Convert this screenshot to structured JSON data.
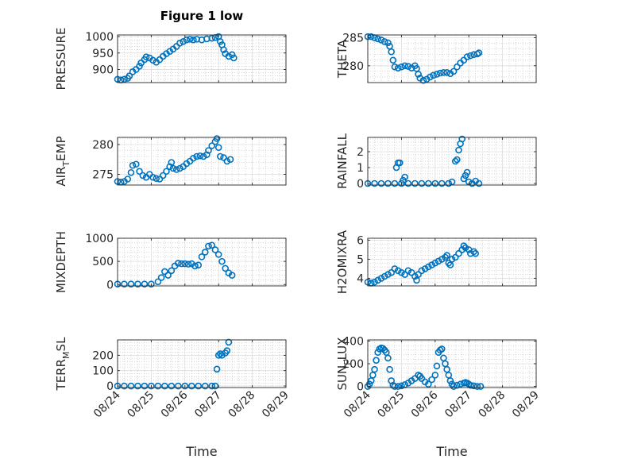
{
  "figure": {
    "title": "Figure 1 low"
  },
  "colors": {
    "marker": "#0072BD",
    "axis": "#262626",
    "grid": "#b0b0b0"
  },
  "x_axis": {
    "label": "Time",
    "ticks": [
      0,
      1,
      2,
      3,
      4,
      5
    ],
    "tick_labels": [
      "08/24",
      "08/25",
      "08/26",
      "08/27",
      "08/28",
      "08/29"
    ]
  },
  "chart_data": [
    {
      "type": "scatter",
      "xlabel": "",
      "ylabel": "PRESSURE",
      "ylim": [
        860,
        1005
      ],
      "xlim": [
        0,
        5
      ],
      "yticks": [
        900,
        950,
        1000
      ],
      "ytick_labels": [
        "900",
        "950",
        "1000"
      ],
      "grid": true,
      "minor_grid": true,
      "points": [
        [
          0,
          870
        ],
        [
          0.1,
          868
        ],
        [
          0.2,
          870
        ],
        [
          0.3,
          873
        ],
        [
          0.35,
          880
        ],
        [
          0.45,
          893
        ],
        [
          0.55,
          900
        ],
        [
          0.65,
          910
        ],
        [
          0.7,
          920
        ],
        [
          0.8,
          930
        ],
        [
          0.85,
          938
        ],
        [
          0.95,
          935
        ],
        [
          1.05,
          928
        ],
        [
          1.15,
          922
        ],
        [
          1.25,
          930
        ],
        [
          1.35,
          940
        ],
        [
          1.45,
          948
        ],
        [
          1.55,
          955
        ],
        [
          1.65,
          962
        ],
        [
          1.75,
          970
        ],
        [
          1.85,
          980
        ],
        [
          1.95,
          985
        ],
        [
          2.05,
          990
        ],
        [
          2.15,
          992
        ],
        [
          2.25,
          990
        ],
        [
          2.35,
          992
        ],
        [
          2.5,
          990
        ],
        [
          2.65,
          993
        ],
        [
          2.8,
          995
        ],
        [
          2.9,
          997
        ],
        [
          3.0,
          1000
        ],
        [
          3.05,
          985
        ],
        [
          3.1,
          975
        ],
        [
          3.15,
          960
        ],
        [
          3.2,
          948
        ],
        [
          3.3,
          940
        ],
        [
          3.4,
          945
        ],
        [
          3.45,
          935
        ]
      ]
    },
    {
      "type": "scatter",
      "xlabel": "",
      "ylabel": "THETA",
      "ylim": [
        277,
        285.5
      ],
      "xlim": [
        0,
        5
      ],
      "yticks": [
        280,
        285
      ],
      "ytick_labels": [
        "280",
        "285"
      ],
      "grid": true,
      "minor_grid": true,
      "points": [
        [
          0,
          285.2
        ],
        [
          0.1,
          285.2
        ],
        [
          0.2,
          285
        ],
        [
          0.3,
          284.8
        ],
        [
          0.4,
          284.6
        ],
        [
          0.5,
          284.3
        ],
        [
          0.6,
          284.1
        ],
        [
          0.65,
          283.5
        ],
        [
          0.7,
          282.5
        ],
        [
          0.75,
          281
        ],
        [
          0.8,
          279.8
        ],
        [
          0.9,
          279.6
        ],
        [
          1.0,
          279.8
        ],
        [
          1.1,
          280
        ],
        [
          1.2,
          279.9
        ],
        [
          1.3,
          279.6
        ],
        [
          1.4,
          280
        ],
        [
          1.45,
          279.5
        ],
        [
          1.5,
          278.5
        ],
        [
          1.55,
          277.8
        ],
        [
          1.65,
          277.4
        ],
        [
          1.75,
          277.6
        ],
        [
          1.85,
          278
        ],
        [
          1.95,
          278.3
        ],
        [
          2.05,
          278.5
        ],
        [
          2.15,
          278.7
        ],
        [
          2.25,
          278.8
        ],
        [
          2.35,
          278.8
        ],
        [
          2.45,
          278.6
        ],
        [
          2.55,
          279
        ],
        [
          2.65,
          279.8
        ],
        [
          2.75,
          280.5
        ],
        [
          2.85,
          281
        ],
        [
          2.95,
          281.6
        ],
        [
          3.05,
          281.8
        ],
        [
          3.15,
          282
        ],
        [
          3.25,
          282.1
        ],
        [
          3.3,
          282.3
        ]
      ]
    },
    {
      "type": "scatter",
      "xlabel": "",
      "ylabel": "AIR_TEMP",
      "ylim": [
        273.2,
        281.2
      ],
      "xlim": [
        0,
        5
      ],
      "yticks": [
        275,
        280
      ],
      "ytick_labels": [
        "275",
        "280"
      ],
      "grid": true,
      "minor_grid": true,
      "points": [
        [
          0,
          273.8
        ],
        [
          0.1,
          273.7
        ],
        [
          0.2,
          273.8
        ],
        [
          0.3,
          274.2
        ],
        [
          0.4,
          275.3
        ],
        [
          0.45,
          276.5
        ],
        [
          0.55,
          276.7
        ],
        [
          0.65,
          275.5
        ],
        [
          0.75,
          274.8
        ],
        [
          0.85,
          274.5
        ],
        [
          0.95,
          275
        ],
        [
          1.05,
          274.5
        ],
        [
          1.15,
          274.3
        ],
        [
          1.25,
          274.2
        ],
        [
          1.35,
          274.8
        ],
        [
          1.45,
          275.5
        ],
        [
          1.55,
          276.3
        ],
        [
          1.6,
          277
        ],
        [
          1.65,
          276
        ],
        [
          1.75,
          275.8
        ],
        [
          1.85,
          276
        ],
        [
          1.95,
          276.3
        ],
        [
          2.05,
          276.8
        ],
        [
          2.15,
          277.2
        ],
        [
          2.25,
          277.7
        ],
        [
          2.35,
          278
        ],
        [
          2.45,
          278.1
        ],
        [
          2.55,
          278
        ],
        [
          2.65,
          278.3
        ],
        [
          2.7,
          279
        ],
        [
          2.8,
          279.8
        ],
        [
          2.9,
          280.5
        ],
        [
          2.95,
          281
        ],
        [
          3.0,
          279.5
        ],
        [
          3.05,
          278
        ],
        [
          3.15,
          277.8
        ],
        [
          3.25,
          277.2
        ],
        [
          3.35,
          277.5
        ]
      ]
    },
    {
      "type": "scatter",
      "xlabel": "",
      "ylabel": "RAINFALL",
      "ylim": [
        -0.1,
        2.9
      ],
      "xlim": [
        0,
        5
      ],
      "yticks": [
        0,
        1,
        2
      ],
      "ytick_labels": [
        "0",
        "1",
        "2"
      ],
      "grid": true,
      "minor_grid": true,
      "points": [
        [
          0,
          0
        ],
        [
          0.2,
          0
        ],
        [
          0.4,
          0
        ],
        [
          0.6,
          0
        ],
        [
          0.8,
          0
        ],
        [
          0.85,
          1
        ],
        [
          0.9,
          1.3
        ],
        [
          0.95,
          1.3
        ],
        [
          1.0,
          0
        ],
        [
          1.05,
          0.2
        ],
        [
          1.1,
          0.4
        ],
        [
          1.2,
          0
        ],
        [
          1.4,
          0
        ],
        [
          1.6,
          0
        ],
        [
          1.8,
          0
        ],
        [
          2.0,
          0
        ],
        [
          2.2,
          0
        ],
        [
          2.4,
          0
        ],
        [
          2.5,
          0.1
        ],
        [
          2.6,
          1.4
        ],
        [
          2.65,
          1.5
        ],
        [
          2.7,
          2.1
        ],
        [
          2.75,
          2.5
        ],
        [
          2.8,
          2.8
        ],
        [
          2.85,
          0.3
        ],
        [
          2.9,
          0.5
        ],
        [
          2.95,
          0.7
        ],
        [
          3.0,
          0.1
        ],
        [
          3.1,
          0
        ],
        [
          3.2,
          0.15
        ],
        [
          3.3,
          0
        ]
      ]
    },
    {
      "type": "scatter",
      "xlabel": "",
      "ylabel": "MIXDEPTH",
      "ylim": [
        -30,
        1000
      ],
      "xlim": [
        0,
        5
      ],
      "yticks": [
        0,
        500,
        1000
      ],
      "ytick_labels": [
        "0",
        "500",
        "1000"
      ],
      "grid": true,
      "minor_grid": true,
      "points": [
        [
          0,
          10
        ],
        [
          0.2,
          10
        ],
        [
          0.4,
          10
        ],
        [
          0.6,
          10
        ],
        [
          0.8,
          10
        ],
        [
          1.0,
          10
        ],
        [
          1.2,
          60
        ],
        [
          1.3,
          150
        ],
        [
          1.4,
          280
        ],
        [
          1.5,
          200
        ],
        [
          1.6,
          300
        ],
        [
          1.7,
          400
        ],
        [
          1.8,
          460
        ],
        [
          1.9,
          450
        ],
        [
          2.0,
          450
        ],
        [
          2.1,
          440
        ],
        [
          2.2,
          450
        ],
        [
          2.3,
          400
        ],
        [
          2.4,
          420
        ],
        [
          2.5,
          600
        ],
        [
          2.6,
          700
        ],
        [
          2.7,
          830
        ],
        [
          2.8,
          850
        ],
        [
          2.9,
          750
        ],
        [
          3.0,
          650
        ],
        [
          3.1,
          500
        ],
        [
          3.2,
          350
        ],
        [
          3.3,
          250
        ],
        [
          3.4,
          200
        ]
      ]
    },
    {
      "type": "scatter",
      "xlabel": "",
      "ylabel": "H2OMIXRA",
      "ylim": [
        3.6,
        6.1
      ],
      "xlim": [
        0,
        5
      ],
      "yticks": [
        4,
        5,
        6
      ],
      "ytick_labels": [
        "4",
        "5",
        "6"
      ],
      "grid": true,
      "minor_grid": true,
      "points": [
        [
          0,
          3.8
        ],
        [
          0.1,
          3.75
        ],
        [
          0.2,
          3.8
        ],
        [
          0.3,
          3.9
        ],
        [
          0.4,
          4
        ],
        [
          0.5,
          4.1
        ],
        [
          0.6,
          4.2
        ],
        [
          0.7,
          4.3
        ],
        [
          0.8,
          4.5
        ],
        [
          0.9,
          4.4
        ],
        [
          1.0,
          4.3
        ],
        [
          1.1,
          4.2
        ],
        [
          1.2,
          4.4
        ],
        [
          1.3,
          4.3
        ],
        [
          1.4,
          4.1
        ],
        [
          1.45,
          3.9
        ],
        [
          1.5,
          4.2
        ],
        [
          1.6,
          4.4
        ],
        [
          1.7,
          4.5
        ],
        [
          1.8,
          4.6
        ],
        [
          1.9,
          4.7
        ],
        [
          2.0,
          4.8
        ],
        [
          2.1,
          4.9
        ],
        [
          2.2,
          5
        ],
        [
          2.3,
          5.1
        ],
        [
          2.35,
          5.2
        ],
        [
          2.4,
          4.8
        ],
        [
          2.45,
          4.7
        ],
        [
          2.5,
          5
        ],
        [
          2.6,
          5.1
        ],
        [
          2.7,
          5.3
        ],
        [
          2.8,
          5.5
        ],
        [
          2.85,
          5.7
        ],
        [
          2.9,
          5.6
        ],
        [
          3.0,
          5.5
        ],
        [
          3.05,
          5.3
        ],
        [
          3.15,
          5.4
        ],
        [
          3.2,
          5.3
        ]
      ]
    },
    {
      "type": "scatter",
      "xlabel": "",
      "ylabel": "TERR_MSL",
      "ylim": [
        -10,
        300
      ],
      "xlim": [
        0,
        5
      ],
      "yticks": [
        0,
        100,
        200
      ],
      "ytick_labels": [
        "0",
        "100",
        "200"
      ],
      "grid": true,
      "minor_grid": true,
      "points": [
        [
          0,
          0
        ],
        [
          0.2,
          0
        ],
        [
          0.4,
          0
        ],
        [
          0.6,
          0
        ],
        [
          0.8,
          0
        ],
        [
          1.0,
          0
        ],
        [
          1.2,
          0
        ],
        [
          1.4,
          0
        ],
        [
          1.6,
          0
        ],
        [
          1.8,
          0
        ],
        [
          2.0,
          0
        ],
        [
          2.2,
          0
        ],
        [
          2.4,
          0
        ],
        [
          2.6,
          0
        ],
        [
          2.8,
          0
        ],
        [
          2.9,
          0
        ],
        [
          2.95,
          110
        ],
        [
          3.0,
          200
        ],
        [
          3.05,
          210
        ],
        [
          3.1,
          200
        ],
        [
          3.2,
          215
        ],
        [
          3.25,
          230
        ],
        [
          3.3,
          285
        ]
      ]
    },
    {
      "type": "scatter",
      "xlabel": "",
      "ylabel": "SUN_FLUX",
      "ylim": [
        -10,
        410
      ],
      "xlim": [
        0,
        5
      ],
      "yticks": [
        0,
        200,
        400
      ],
      "ytick_labels": [
        "0",
        "200",
        "400"
      ],
      "grid": true,
      "minor_grid": true,
      "points": [
        [
          0,
          0
        ],
        [
          0.05,
          20
        ],
        [
          0.1,
          50
        ],
        [
          0.15,
          100
        ],
        [
          0.2,
          150
        ],
        [
          0.25,
          230
        ],
        [
          0.3,
          300
        ],
        [
          0.35,
          330
        ],
        [
          0.4,
          340
        ],
        [
          0.45,
          335
        ],
        [
          0.5,
          320
        ],
        [
          0.55,
          300
        ],
        [
          0.6,
          250
        ],
        [
          0.65,
          150
        ],
        [
          0.7,
          50
        ],
        [
          0.75,
          10
        ],
        [
          0.8,
          0
        ],
        [
          0.9,
          0
        ],
        [
          1.0,
          5
        ],
        [
          1.1,
          15
        ],
        [
          1.2,
          30
        ],
        [
          1.3,
          50
        ],
        [
          1.4,
          70
        ],
        [
          1.5,
          100
        ],
        [
          1.55,
          90
        ],
        [
          1.6,
          70
        ],
        [
          1.7,
          40
        ],
        [
          1.8,
          20
        ],
        [
          1.9,
          60
        ],
        [
          2.0,
          100
        ],
        [
          2.05,
          180
        ],
        [
          2.1,
          300
        ],
        [
          2.15,
          320
        ],
        [
          2.2,
          330
        ],
        [
          2.25,
          250
        ],
        [
          2.3,
          200
        ],
        [
          2.35,
          150
        ],
        [
          2.4,
          100
        ],
        [
          2.45,
          50
        ],
        [
          2.5,
          20
        ],
        [
          2.55,
          0
        ],
        [
          2.65,
          10
        ],
        [
          2.75,
          20
        ],
        [
          2.85,
          30
        ],
        [
          2.9,
          35
        ],
        [
          2.95,
          30
        ],
        [
          3.0,
          20
        ],
        [
          3.05,
          10
        ],
        [
          3.15,
          5
        ],
        [
          3.25,
          0
        ],
        [
          3.35,
          0
        ]
      ]
    }
  ]
}
